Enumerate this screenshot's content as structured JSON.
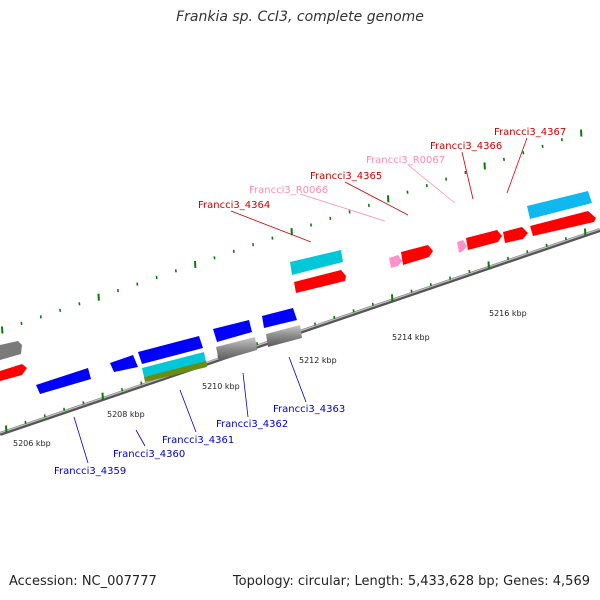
{
  "header": {
    "title": "Frankia sp. CcI3, complete genome"
  },
  "footer": {
    "accession": "Accession: NC_007777",
    "topology": "Topology: circular; Length: 5,433,628 bp; Genes: 4,569"
  },
  "colors": {
    "red_gene": "#ff0000",
    "blue_gene": "#0000ff",
    "cyan_gene": "#00c8d8",
    "sky_gene": "#10b8f0",
    "gray_gene": "#7a7a7a",
    "pink_gene": "#ff90c8",
    "olive_gene": "#6c8c10",
    "tick_green": "#0a7a0a",
    "label_red": "#cc0000",
    "label_pink": "#ff8cb0",
    "label_blue": "#0000cc"
  },
  "scale_labels": [
    "5206 kbp",
    "5208 kbp",
    "5210 kbp",
    "5212 kbp",
    "5214 kbp",
    "5216 kbp"
  ],
  "top_labels": [
    "Francci3_4364",
    "Francci3_R0066",
    "Francci3_4365",
    "Francci3_R0067",
    "Francci3_4366",
    "Francci3_4367"
  ],
  "bottom_labels": [
    "Francci3_4359",
    "Francci3_4360",
    "Francci3_4361",
    "Francci3_4362",
    "Francci3_4363"
  ]
}
